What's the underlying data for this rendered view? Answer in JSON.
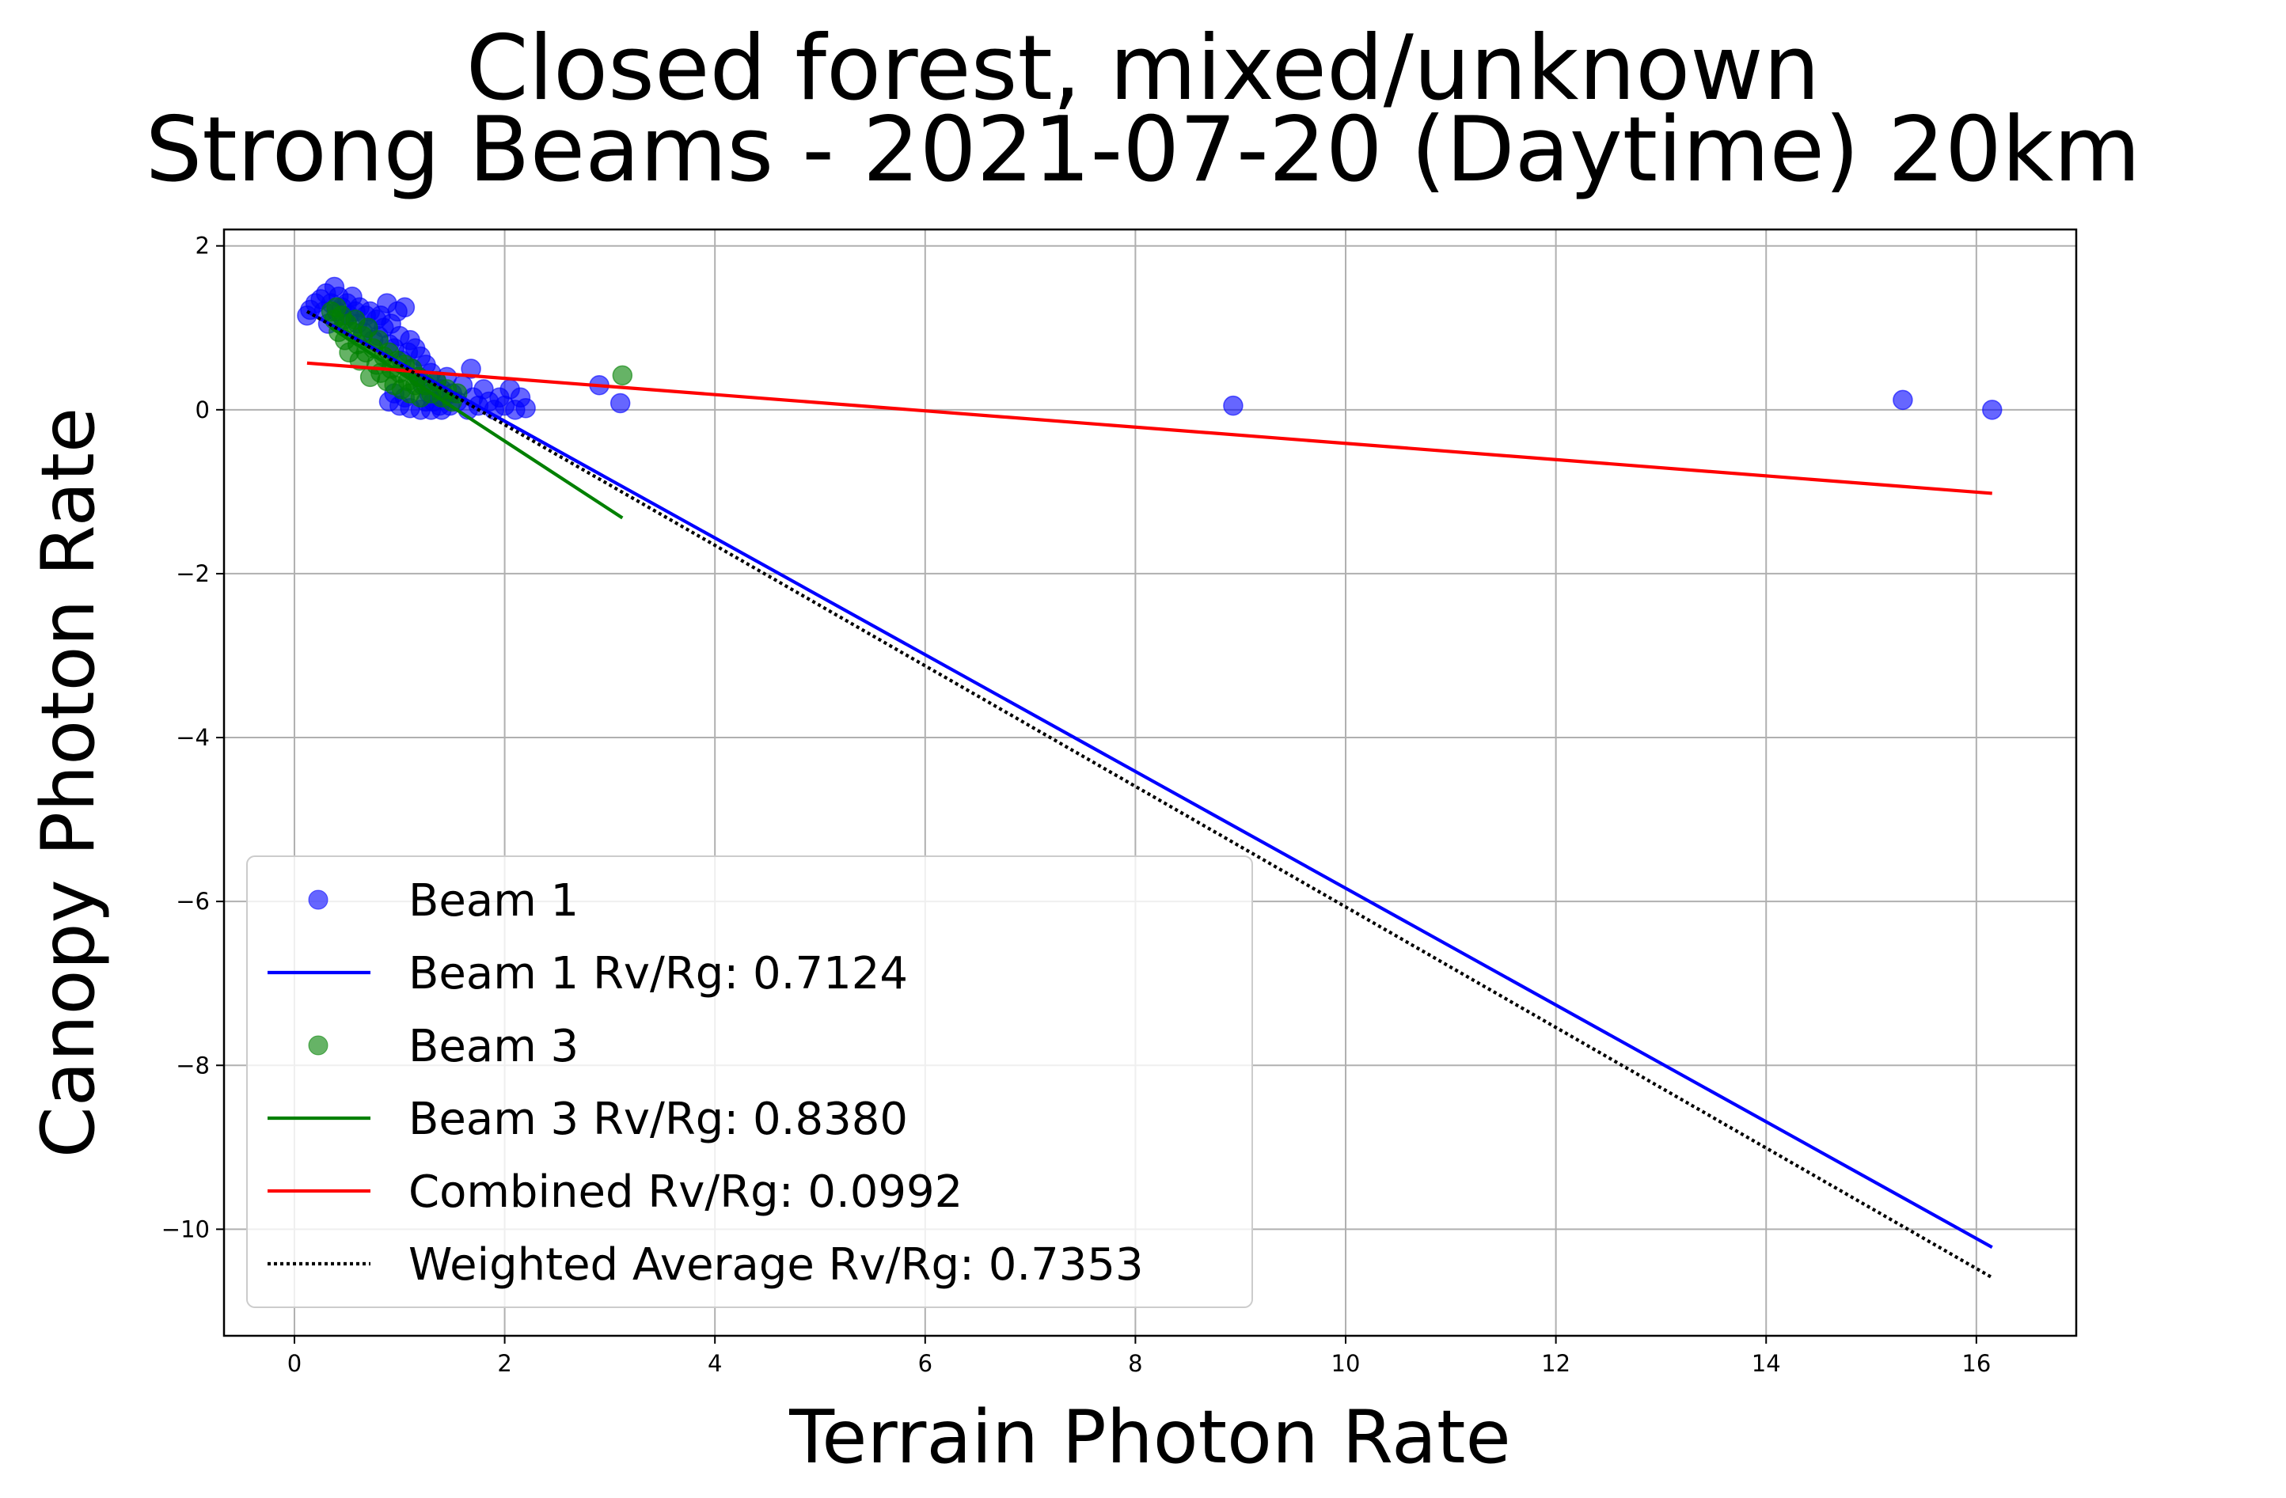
{
  "chart_data": {
    "type": "scatter",
    "title": "Closed forest, mixed/unknown\nStrong Beams - 2021-07-20 (Daytime) 20km",
    "xlabel": "Terrain Photon Rate",
    "ylabel": "Canopy Photon Rate",
    "xlim": [
      -0.67,
      16.95
    ],
    "ylim": [
      -11.3,
      2.2
    ],
    "xticks": [
      0,
      2,
      4,
      6,
      8,
      10,
      12,
      14,
      16
    ],
    "yticks": [
      2,
      0,
      -2,
      -4,
      -6,
      -8,
      -10
    ],
    "ytick_labels": [
      "2",
      "0",
      "−2",
      "−4",
      "−6",
      "−8",
      "−10"
    ],
    "grid": true,
    "legend_position": "lower-left",
    "scatter_series": [
      {
        "name": "Beam 1",
        "color": "#0000ff",
        "points": [
          [
            0.12,
            1.15
          ],
          [
            0.15,
            1.22
          ],
          [
            0.2,
            1.3
          ],
          [
            0.25,
            1.35
          ],
          [
            0.28,
            1.2
          ],
          [
            0.3,
            1.42
          ],
          [
            0.32,
            1.05
          ],
          [
            0.35,
            1.3
          ],
          [
            0.38,
            1.5
          ],
          [
            0.4,
            1.2
          ],
          [
            0.42,
            1.38
          ],
          [
            0.45,
            1.25
          ],
          [
            0.47,
            1.1
          ],
          [
            0.5,
            1.3
          ],
          [
            0.52,
            1.15
          ],
          [
            0.55,
            1.38
          ],
          [
            0.58,
            1.2
          ],
          [
            0.6,
            1.05
          ],
          [
            0.62,
            1.25
          ],
          [
            0.65,
            0.95
          ],
          [
            0.68,
            1.15
          ],
          [
            0.7,
            1.0
          ],
          [
            0.72,
            1.2
          ],
          [
            0.75,
            0.85
          ],
          [
            0.78,
            1.1
          ],
          [
            0.8,
            0.9
          ],
          [
            0.82,
            1.15
          ],
          [
            0.85,
            1.0
          ],
          [
            0.88,
            1.3
          ],
          [
            0.9,
            0.8
          ],
          [
            0.92,
            1.05
          ],
          [
            0.95,
            0.75
          ],
          [
            0.98,
            1.2
          ],
          [
            1.0,
            0.9
          ],
          [
            1.02,
            0.6
          ],
          [
            1.05,
            1.25
          ],
          [
            1.08,
            0.7
          ],
          [
            1.1,
            0.85
          ],
          [
            1.12,
            0.5
          ],
          [
            1.15,
            0.75
          ],
          [
            1.18,
            0.4
          ],
          [
            1.2,
            0.65
          ],
          [
            1.22,
            0.3
          ],
          [
            1.25,
            0.55
          ],
          [
            1.28,
            0.2
          ],
          [
            1.3,
            0.45
          ],
          [
            1.32,
            0.1
          ],
          [
            1.35,
            0.35
          ],
          [
            1.38,
            0.05
          ],
          [
            1.4,
            0.25
          ],
          [
            1.42,
            0.15
          ],
          [
            1.45,
            0.4
          ],
          [
            1.48,
            0.05
          ],
          [
            1.5,
            0.2
          ],
          [
            1.55,
            0.1
          ],
          [
            1.6,
            0.3
          ],
          [
            1.65,
            0.0
          ],
          [
            1.68,
            0.5
          ],
          [
            1.7,
            0.15
          ],
          [
            1.75,
            0.05
          ],
          [
            1.8,
            0.25
          ],
          [
            1.85,
            0.1
          ],
          [
            1.9,
            0.0
          ],
          [
            1.95,
            0.15
          ],
          [
            2.0,
            0.05
          ],
          [
            2.05,
            0.25
          ],
          [
            2.1,
            0.0
          ],
          [
            2.15,
            0.15
          ],
          [
            2.2,
            0.02
          ],
          [
            0.9,
            0.1
          ],
          [
            1.0,
            0.05
          ],
          [
            1.1,
            0.02
          ],
          [
            1.2,
            0.0
          ],
          [
            1.3,
            0.0
          ],
          [
            1.4,
            0.0
          ],
          [
            0.95,
            0.2
          ],
          [
            1.05,
            0.15
          ],
          [
            1.25,
            0.1
          ],
          [
            2.9,
            0.3
          ],
          [
            3.1,
            0.08
          ],
          [
            8.93,
            0.05
          ],
          [
            15.3,
            0.12
          ],
          [
            16.15,
            0.0
          ]
        ]
      },
      {
        "name": "Beam 3",
        "color": "#008000",
        "points": [
          [
            0.35,
            1.2
          ],
          [
            0.38,
            1.1
          ],
          [
            0.4,
            1.25
          ],
          [
            0.42,
            0.95
          ],
          [
            0.45,
            1.15
          ],
          [
            0.48,
            0.85
          ],
          [
            0.5,
            1.05
          ],
          [
            0.52,
            0.7
          ],
          [
            0.55,
            0.95
          ],
          [
            0.58,
            1.1
          ],
          [
            0.6,
            0.8
          ],
          [
            0.62,
            0.6
          ],
          [
            0.65,
            0.9
          ],
          [
            0.68,
            0.7
          ],
          [
            0.7,
            1.0
          ],
          [
            0.72,
            0.4
          ],
          [
            0.75,
            0.75
          ],
          [
            0.78,
            0.55
          ],
          [
            0.8,
            0.85
          ],
          [
            0.82,
            0.45
          ],
          [
            0.85,
            0.65
          ],
          [
            0.88,
            0.35
          ],
          [
            0.9,
            0.7
          ],
          [
            0.92,
            0.5
          ],
          [
            0.95,
            0.3
          ],
          [
            0.98,
            0.6
          ],
          [
            1.0,
            0.45
          ],
          [
            1.02,
            0.25
          ],
          [
            1.05,
            0.55
          ],
          [
            1.08,
            0.35
          ],
          [
            1.1,
            0.2
          ],
          [
            1.12,
            0.5
          ],
          [
            1.15,
            0.3
          ],
          [
            1.18,
            0.4
          ],
          [
            1.2,
            0.15
          ],
          [
            1.25,
            0.3
          ],
          [
            1.3,
            0.2
          ],
          [
            1.35,
            0.35
          ],
          [
            1.4,
            0.15
          ],
          [
            1.45,
            0.25
          ],
          [
            1.5,
            0.1
          ],
          [
            1.55,
            0.2
          ],
          [
            3.12,
            0.42
          ]
        ]
      }
    ],
    "line_series": [
      {
        "name": "Beam 1 Rv/Rg: 0.7124",
        "color": "#0000ff",
        "dash": "solid",
        "x": [
          0.12,
          16.15
        ],
        "y": [
          1.2,
          -10.22
        ]
      },
      {
        "name": "Beam 3 Rv/Rg: 0.8380",
        "color": "#008000",
        "dash": "solid",
        "x": [
          0.35,
          3.12
        ],
        "y": [
          1.0,
          -1.32
        ]
      },
      {
        "name": "Combined Rv/Rg: 0.0992",
        "color": "#ff0000",
        "dash": "solid",
        "x": [
          0.12,
          16.15
        ],
        "y": [
          0.57,
          -1.02
        ]
      },
      {
        "name": "Weighted Average Rv/Rg: 0.7353",
        "color": "#000000",
        "dash": "dotted",
        "x": [
          0.12,
          16.15
        ],
        "y": [
          1.2,
          -10.59
        ]
      }
    ],
    "legend": [
      {
        "label": "Beam 1",
        "kind": "marker",
        "color": "#0000ff"
      },
      {
        "label": "Beam 1 Rv/Rg: 0.7124",
        "kind": "line",
        "color": "#0000ff",
        "dash": "solid"
      },
      {
        "label": "Beam 3",
        "kind": "marker",
        "color": "#008000"
      },
      {
        "label": "Beam 3 Rv/Rg: 0.8380",
        "kind": "line",
        "color": "#008000",
        "dash": "solid"
      },
      {
        "label": "Combined Rv/Rg: 0.0992",
        "kind": "line",
        "color": "#ff0000",
        "dash": "solid"
      },
      {
        "label": "Weighted Average Rv/Rg: 0.7353",
        "kind": "line",
        "color": "#000000",
        "dash": "dotted"
      }
    ]
  }
}
